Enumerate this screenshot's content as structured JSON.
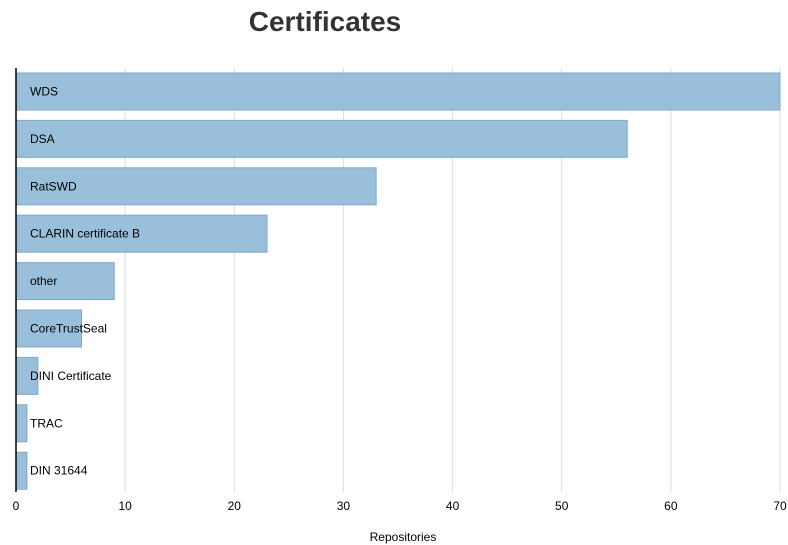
{
  "chart_data": {
    "type": "bar",
    "orientation": "horizontal",
    "title": "Certificates",
    "xlabel": "Repositories",
    "ylabel": "",
    "xlim": [
      0,
      70
    ],
    "x_ticks": [
      0,
      10,
      20,
      30,
      40,
      50,
      60,
      70
    ],
    "grid": true,
    "categories": [
      "WDS",
      "DSA",
      "RatSWD",
      "CLARIN certificate B",
      "other",
      "CoreTrustSeal",
      "DINI Certificate",
      "TRAC",
      "DIN 31644"
    ],
    "values": [
      70,
      56,
      33,
      23,
      9,
      6,
      2,
      1,
      1
    ],
    "bar_color": "#99bfdb",
    "bar_stroke": "#7fa9c9",
    "grid_color": "#dddddd",
    "axis_color": "#000000"
  }
}
